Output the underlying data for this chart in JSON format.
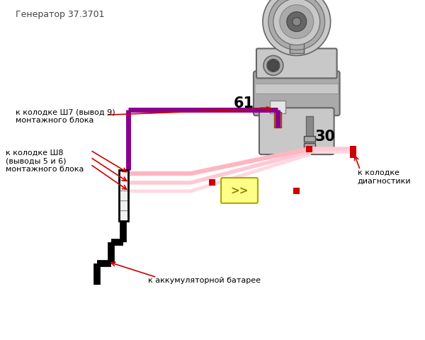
{
  "title": "Генератор 37.3701",
  "bg_color": "#ffffff",
  "label_61": "61",
  "label_30": "30",
  "text_sh7": "к колодке Ш7 (вывод 9)\nмонтажного блока",
  "text_sh8": "к колодке Ш8\n(выводы 5 и 6)\nмонтажного блока",
  "text_diag": "к колодке\nдиагностики",
  "text_bat": "к аккумуляторной батарее",
  "purple": "#8B008B",
  "pink1": "#FFB6C1",
  "pink2": "#FFC8D4",
  "pink3": "#FFD8E0",
  "pink4": "#FFE4EC",
  "pink5": "#FFF0F4",
  "red": "#CC0000",
  "black": "#000000",
  "gray1": "#C8C8C8",
  "gray2": "#AAAAAA",
  "gray3": "#888888",
  "gray4": "#666666",
  "gray5": "#444444",
  "copper": "#B87333",
  "yellow": "#FFFF88",
  "font_small": 8,
  "font_label": 15
}
